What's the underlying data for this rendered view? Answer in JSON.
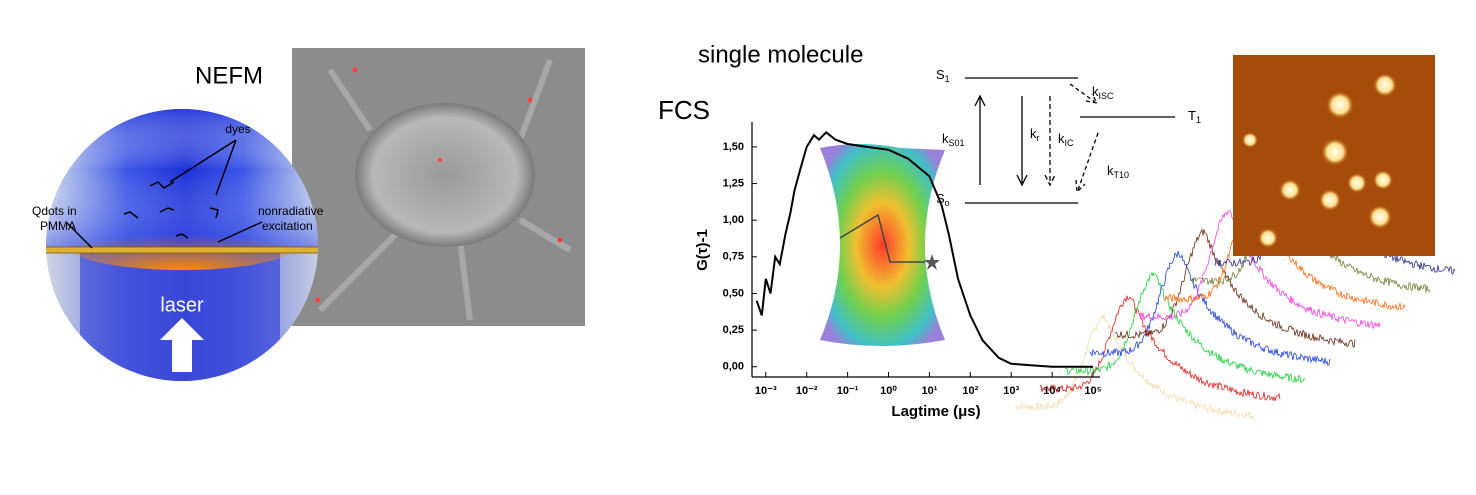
{
  "left_panel": {
    "title": "NEFM",
    "dyes": "dyes",
    "qdots": [
      "Qdots in",
      "PMMA"
    ],
    "excitation": [
      "nonradiative",
      "excitation"
    ],
    "laser": "laser"
  },
  "right_panel": {
    "title": "single molecule",
    "subtitle": "FCS"
  },
  "energy_diagram": {
    "levels": [
      {
        "main": "S",
        "sub": "1"
      },
      {
        "main": "S",
        "sub": "o"
      },
      {
        "main": "T",
        "sub": "1"
      }
    ],
    "rates": [
      {
        "main": "k",
        "sub": "S01"
      },
      {
        "main": "k",
        "sub": "r"
      },
      {
        "main": "k",
        "sub": "IC"
      },
      {
        "main": "k",
        "sub": "ISC"
      },
      {
        "main": "k",
        "sub": "T10"
      }
    ]
  },
  "chart_data": {
    "type": "line",
    "x_label": "Lagtime (μs)",
    "y_label": "G(τ)-1",
    "xscale": "log",
    "color": "#000000",
    "xlim": [
      0.00046,
      148000
    ],
    "ylim": [
      -0.07,
      1.67
    ],
    "xticks": [
      {
        "value": 0.001,
        "label": "10⁻³"
      },
      {
        "value": 0.01,
        "label": "10⁻²"
      },
      {
        "value": 0.1,
        "label": "10⁻¹"
      },
      {
        "value": 1,
        "label": "10⁰"
      },
      {
        "value": 10,
        "label": "10¹"
      },
      {
        "value": 100,
        "label": "10²"
      },
      {
        "value": 1000,
        "label": "10³"
      },
      {
        "value": 10000,
        "label": "10⁴"
      },
      {
        "value": 100000,
        "label": "10⁵"
      }
    ],
    "yticks": [
      {
        "value": 0,
        "label": "0,00"
      },
      {
        "value": 0.25,
        "label": "0,25"
      },
      {
        "value": 0.5,
        "label": "0,50"
      },
      {
        "value": 0.75,
        "label": "0,75"
      },
      {
        "value": 1,
        "label": "1,00"
      },
      {
        "value": 1.25,
        "label": "1,25"
      },
      {
        "value": 1.5,
        "label": "1,50"
      }
    ],
    "x": [
      0.0006,
      0.0008,
      0.001,
      0.0013,
      0.0017,
      0.0022,
      0.003,
      0.004,
      0.005,
      0.007,
      0.01,
      0.015,
      0.02,
      0.03,
      0.05,
      0.1,
      0.3,
      1,
      3,
      10,
      20,
      30,
      50,
      100,
      200,
      500,
      1000,
      3000,
      10000,
      100000
    ],
    "values": [
      0.45,
      0.35,
      0.6,
      0.5,
      0.75,
      0.7,
      0.9,
      1.05,
      1.2,
      1.35,
      1.5,
      1.58,
      1.55,
      1.6,
      1.55,
      1.52,
      1.5,
      1.48,
      1.42,
      1.3,
      1.1,
      0.9,
      0.6,
      0.35,
      0.18,
      0.06,
      0.02,
      0.01,
      0.0,
      0.0
    ]
  }
}
